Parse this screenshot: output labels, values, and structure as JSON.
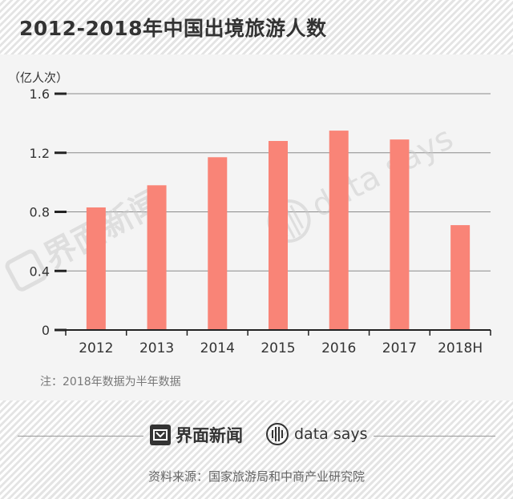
{
  "header": {
    "title": "2012-2018年中国出境旅游人数"
  },
  "chart_data": {
    "type": "bar",
    "title": "2012-2018年中国出境旅游人数",
    "ylabel": "（亿人次）",
    "xlabel": "",
    "categories": [
      "2012",
      "2013",
      "2014",
      "2015",
      "2016",
      "2017",
      "2018H"
    ],
    "values": [
      0.83,
      0.98,
      1.17,
      1.28,
      1.35,
      1.29,
      0.71
    ],
    "ylim": [
      0,
      1.6
    ],
    "yticks": [
      "0",
      "0.4",
      "0.8",
      "1.2",
      "1.6"
    ],
    "grid": true,
    "bar_color": "#f98477"
  },
  "watermarks": {
    "jiemian": "界面新闻",
    "datasays": "data says"
  },
  "footer": {
    "note": "注：2018年数据为半年数据",
    "brand_jiemian": "界面新闻",
    "brand_datasays": "data says",
    "source": "资料来源：国家旅游局和中商产业研究院"
  }
}
